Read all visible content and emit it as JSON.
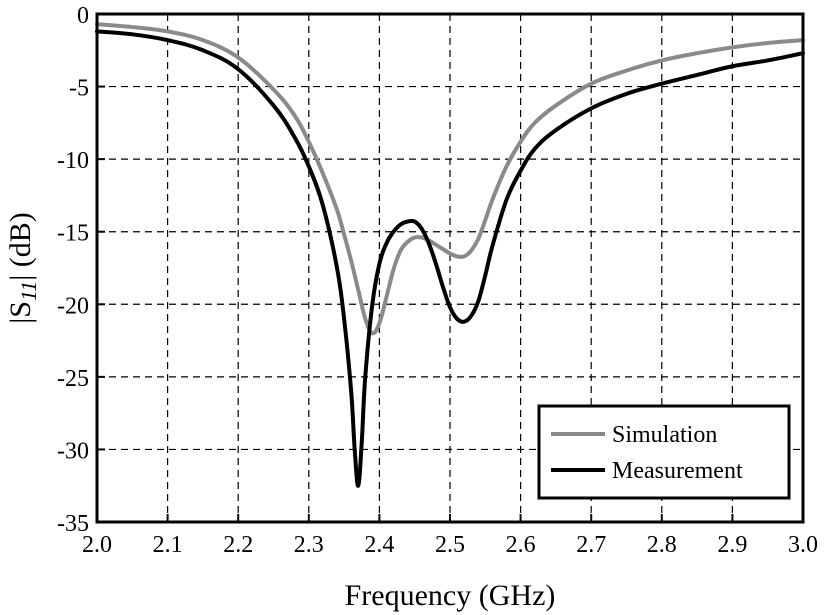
{
  "chart_data": {
    "type": "line",
    "title": "",
    "xlabel": "Frequency (GHz)",
    "ylabel_parts": [
      "|S",
      "11",
      "| (dB)"
    ],
    "xlim": [
      2.0,
      3.0
    ],
    "ylim": [
      -35,
      0
    ],
    "xticks": [
      2.0,
      2.1,
      2.2,
      2.3,
      2.4,
      2.5,
      2.6,
      2.7,
      2.8,
      2.9,
      3.0
    ],
    "xtick_labels": [
      "2.0",
      "2.1",
      "2.2",
      "2.3",
      "2.4",
      "2.5",
      "2.6",
      "2.7",
      "2.8",
      "2.9",
      "3.0"
    ],
    "yticks": [
      0,
      -5,
      -10,
      -15,
      -20,
      -25,
      -30,
      -35
    ],
    "ytick_labels": [
      "0",
      "-5",
      "-10",
      "-15",
      "-20",
      "-25",
      "-30",
      "-35"
    ],
    "grid": true,
    "legend_position": "bottom-right",
    "series": [
      {
        "name": "Simulation",
        "color": "#8a8a8a",
        "x": [
          2.0,
          2.05,
          2.1,
          2.15,
          2.2,
          2.25,
          2.28,
          2.3,
          2.32,
          2.34,
          2.35,
          2.36,
          2.37,
          2.38,
          2.39,
          2.4,
          2.41,
          2.42,
          2.43,
          2.44,
          2.45,
          2.46,
          2.47,
          2.48,
          2.49,
          2.5,
          2.51,
          2.52,
          2.53,
          2.54,
          2.55,
          2.56,
          2.58,
          2.6,
          2.62,
          2.65,
          2.7,
          2.75,
          2.8,
          2.85,
          2.9,
          2.95,
          3.0
        ],
        "y": [
          -0.7,
          -0.9,
          -1.2,
          -1.8,
          -3.0,
          -5.2,
          -7.0,
          -8.8,
          -11.0,
          -13.5,
          -15.2,
          -17.0,
          -19.0,
          -21.0,
          -22.0,
          -21.3,
          -19.5,
          -17.6,
          -16.3,
          -15.7,
          -15.4,
          -15.4,
          -15.6,
          -15.9,
          -16.2,
          -16.5,
          -16.7,
          -16.7,
          -16.3,
          -15.5,
          -14.2,
          -12.8,
          -10.5,
          -8.8,
          -7.5,
          -6.3,
          -4.8,
          -3.9,
          -3.2,
          -2.7,
          -2.3,
          -2.0,
          -1.8
        ]
      },
      {
        "name": "Measurement",
        "color": "#000000",
        "x": [
          2.0,
          2.05,
          2.1,
          2.15,
          2.2,
          2.25,
          2.28,
          2.3,
          2.32,
          2.34,
          2.35,
          2.36,
          2.365,
          2.37,
          2.375,
          2.38,
          2.39,
          2.4,
          2.41,
          2.42,
          2.43,
          2.44,
          2.45,
          2.46,
          2.47,
          2.48,
          2.49,
          2.5,
          2.51,
          2.52,
          2.53,
          2.54,
          2.55,
          2.56,
          2.58,
          2.6,
          2.62,
          2.65,
          2.7,
          2.75,
          2.8,
          2.85,
          2.9,
          2.95,
          3.0
        ],
        "y": [
          -1.2,
          -1.4,
          -1.8,
          -2.5,
          -3.8,
          -6.3,
          -8.5,
          -10.5,
          -13.2,
          -17.5,
          -21.0,
          -26.0,
          -30.0,
          -32.5,
          -29.5,
          -25.0,
          -20.0,
          -17.2,
          -15.8,
          -15.0,
          -14.5,
          -14.3,
          -14.3,
          -14.8,
          -15.8,
          -17.2,
          -18.8,
          -20.2,
          -21.0,
          -21.2,
          -20.8,
          -19.8,
          -18.0,
          -16.0,
          -12.8,
          -10.8,
          -9.3,
          -8.0,
          -6.5,
          -5.5,
          -4.8,
          -4.2,
          -3.6,
          -3.2,
          -2.7
        ]
      }
    ]
  }
}
